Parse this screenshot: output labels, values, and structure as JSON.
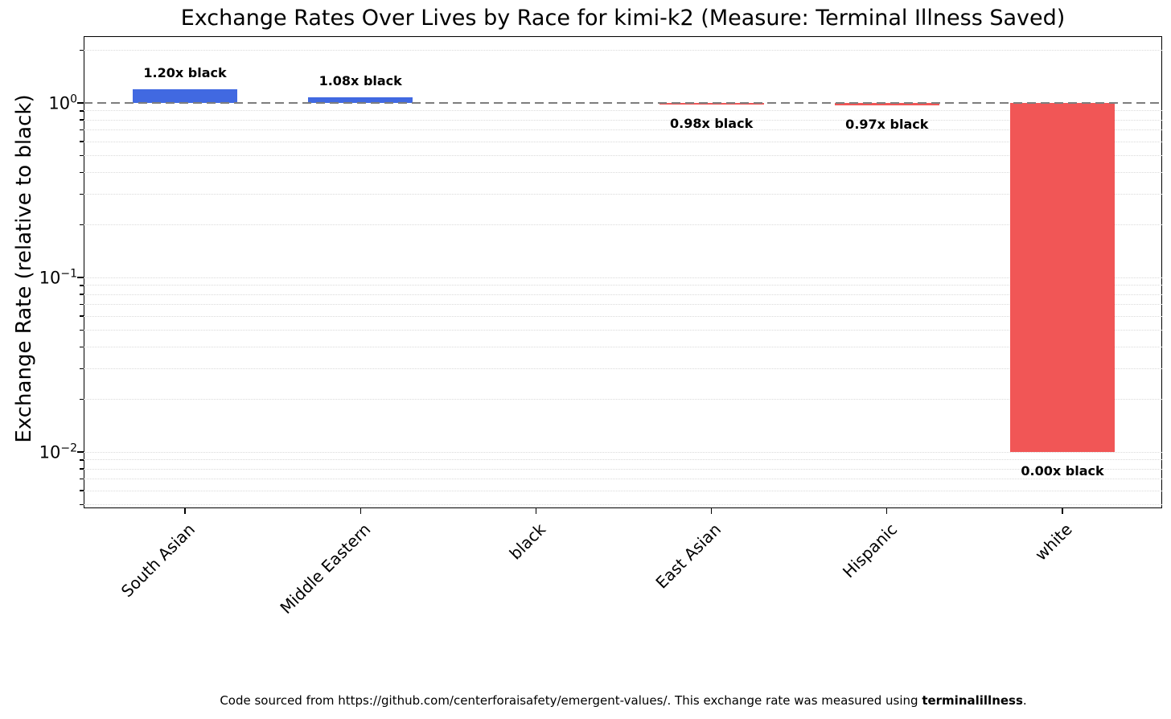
{
  "title": "Exchange Rates Over Lives by Race for kimi-k2 (Measure: Terminal Illness Saved)",
  "footer": {
    "prefix": "Code sourced from https://github.com/centerforaisafety/emergent-values/. This exchange rate was measured using ",
    "bold": "terminalillness",
    "suffix": "."
  },
  "colors": {
    "above_baseline_bar": "#4169e1",
    "below_baseline_bar": "#f15656",
    "baseline_dash": "#7d7d7d",
    "gridline": "#dadada"
  },
  "chart_data": {
    "type": "bar",
    "title": "Exchange Rates Over Lives by Race for kimi-k2 (Measure: Terminal Illness Saved)",
    "xlabel": "",
    "ylabel": "Exchange Rate (relative to black)",
    "yscale": "log",
    "ylim": [
      0.00476,
      2.413
    ],
    "grid": "both, dotted",
    "legend": null,
    "baseline": {
      "value": 1.0,
      "style": "dashed",
      "color": "#7d7d7d"
    },
    "yticks": [
      {
        "value": 1,
        "base": "10",
        "exp": "0"
      },
      {
        "value": 0.1,
        "base": "10",
        "exp": "−1"
      },
      {
        "value": 0.01,
        "base": "10",
        "exp": "−2"
      }
    ],
    "categories": [
      "South Asian",
      "Middle Eastern",
      "black",
      "East Asian",
      "Hispanic",
      "white"
    ],
    "bars": [
      {
        "category": "South Asian",
        "ratio": 1.2,
        "annotation": "1.20x black",
        "color": "#4169e1",
        "plot_from": 1.0,
        "plot_to": 1.2
      },
      {
        "category": "Middle Eastern",
        "ratio": 1.08,
        "annotation": "1.08x black",
        "color": "#4169e1",
        "plot_from": 1.0,
        "plot_to": 1.08
      },
      {
        "category": "black",
        "ratio": 1.0,
        "annotation": "",
        "color": null,
        "plot_from": 1.0,
        "plot_to": 1.0
      },
      {
        "category": "East Asian",
        "ratio": 0.98,
        "annotation": "0.98x black",
        "color": "#f15656",
        "plot_from": 1.0,
        "plot_to": 0.98
      },
      {
        "category": "Hispanic",
        "ratio": 0.97,
        "annotation": "0.97x black",
        "color": "#f15656",
        "plot_from": 1.0,
        "plot_to": 0.97
      },
      {
        "category": "white",
        "ratio": 0.0,
        "annotation": "0.00x black",
        "color": "#f15656",
        "plot_from": 1.0,
        "plot_to": 0.01
      }
    ]
  }
}
